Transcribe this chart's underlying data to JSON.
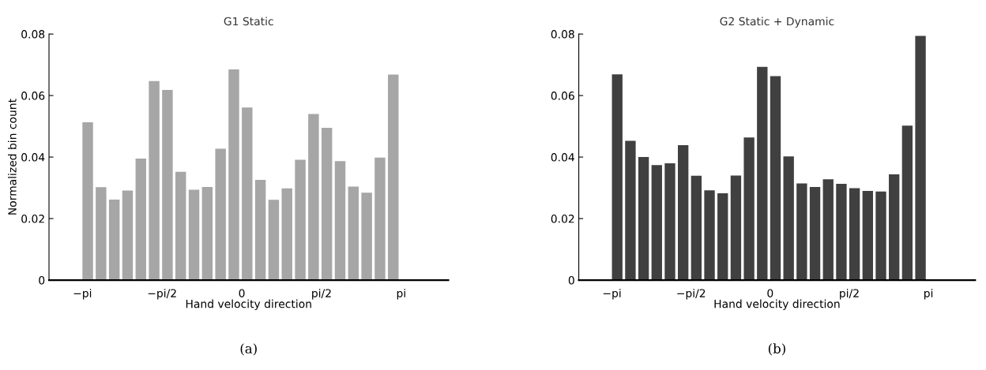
{
  "chart_data": [
    {
      "type": "histogram",
      "title": "G1 Static",
      "xlabel": "Hand velocity direction",
      "ylabel": "Normalized bin count",
      "color": "#a6a6a6",
      "bins": [
        -3.1416,
        -2.8798,
        -2.618,
        -2.3562,
        -2.0944,
        -1.8326,
        -1.5708,
        -1.309,
        -1.0472,
        -0.7854,
        -0.5236,
        -0.2618,
        0,
        0.2618,
        0.5236,
        0.7854,
        1.0472,
        1.309,
        1.5708,
        1.8326,
        2.0944,
        2.3562,
        2.618,
        2.8798,
        3.1416
      ],
      "values": [
        0.0513,
        0.0302,
        0.0262,
        0.0291,
        0.0395,
        0.0647,
        0.0618,
        0.0352,
        0.0294,
        0.0303,
        0.0427,
        0.0685,
        0.0561,
        0.0326,
        0.0261,
        0.0298,
        0.0391,
        0.054,
        0.0495,
        0.0387,
        0.0304,
        0.0284,
        0.0398,
        0.0668
      ],
      "xlim": [
        -3.8,
        4.07
      ],
      "xticks": [
        {
          "value": -3.1416,
          "label": "−pi"
        },
        {
          "value": -1.5708,
          "label": "−pi/2"
        },
        0,
        {
          "value": 1.5708,
          "label": "pi/2"
        },
        {
          "value": 3.1416,
          "label": "pi"
        }
      ],
      "ylim": [
        0,
        0.08
      ],
      "yticks": [
        0,
        0.02,
        0.04,
        0.06,
        0.08
      ],
      "grid": false,
      "annotations": [
        "(a)"
      ]
    },
    {
      "type": "histogram",
      "title": "G2 Static + Dynamic",
      "xlabel": "Hand velocity direction",
      "color": "#404040",
      "bins": [
        -3.1416,
        -2.8798,
        -2.618,
        -2.3562,
        -2.0944,
        -1.8326,
        -1.5708,
        -1.309,
        -1.0472,
        -0.7854,
        -0.5236,
        -0.2618,
        0,
        0.2618,
        0.5236,
        0.7854,
        1.0472,
        1.309,
        1.5708,
        1.8326,
        2.0944,
        2.3562,
        2.618,
        2.8798,
        3.1416
      ],
      "values": [
        0.0669,
        0.0453,
        0.04,
        0.0374,
        0.038,
        0.0439,
        0.0339,
        0.0292,
        0.0282,
        0.034,
        0.0464,
        0.0693,
        0.0663,
        0.0402,
        0.0314,
        0.0303,
        0.0328,
        0.0313,
        0.0299,
        0.029,
        0.0288,
        0.0344,
        0.0502,
        0.0794
      ],
      "xlim": [
        -3.8,
        4.07
      ],
      "xticks": [
        {
          "value": -3.1416,
          "label": "−pi"
        },
        {
          "value": -1.5708,
          "label": "−pi/2"
        },
        0,
        {
          "value": 1.5708,
          "label": "pi/2"
        },
        {
          "value": 3.1416,
          "label": "pi"
        }
      ],
      "ylim": [
        0,
        0.08
      ],
      "yticks": [
        0,
        0.02,
        0.04,
        0.06,
        0.08
      ],
      "grid": false,
      "annotations": [
        "(b)"
      ]
    }
  ]
}
